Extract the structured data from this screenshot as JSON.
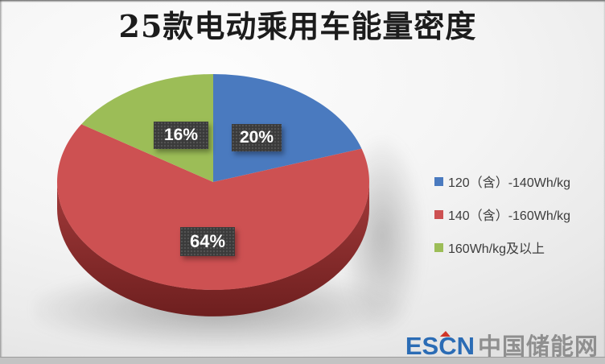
{
  "chart_data": {
    "type": "pie",
    "style": "3d",
    "title": "25款电动乘用车能量密度",
    "categories": [
      "120（含）-140Wh/kg",
      "140（含）-160Wh/kg",
      "160Wh/kg及以上"
    ],
    "values": [
      20,
      64,
      16
    ],
    "value_labels": [
      "20%",
      "64%",
      "16%"
    ],
    "colors": [
      "#4a7abf",
      "#cd5152",
      "#9cbd57"
    ],
    "side_color_top": "#a23a3a",
    "side_color_bottom": "#6e1f1f",
    "start_angle_deg": 0,
    "direction": "clockwise",
    "legend_position": "right",
    "label_background": "#3a3a3a",
    "label_text_color": "#ffffff"
  },
  "watermark": {
    "escn": "ESCN",
    "cn": "中国储能网",
    "escn_color": "#2b6cb5",
    "accent_color": "#d03528",
    "cn_color": "#8f8f8f"
  }
}
